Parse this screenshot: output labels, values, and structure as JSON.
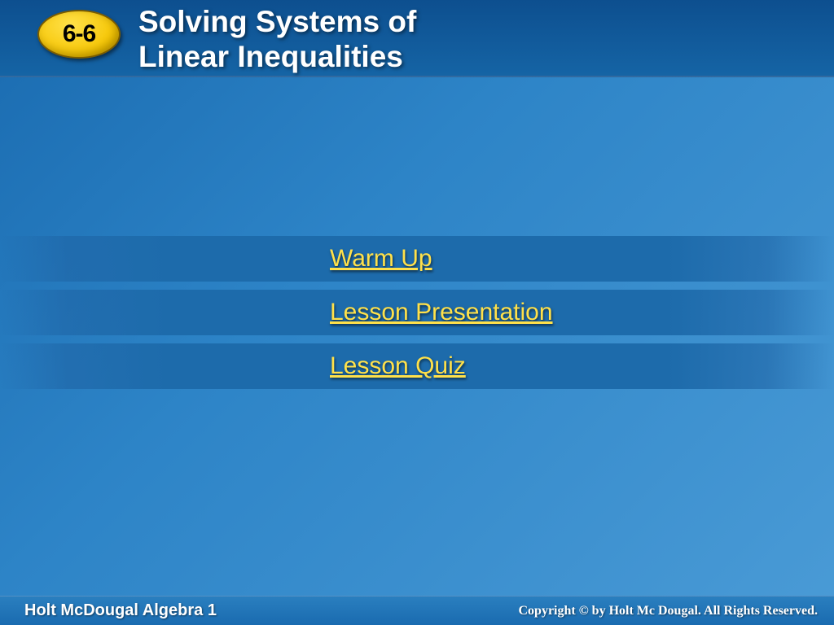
{
  "header": {
    "section_number": "6-6",
    "title_line1": "Solving Systems of",
    "title_line2": "Linear Inequalities"
  },
  "menu": {
    "items": [
      {
        "label": "Warm Up"
      },
      {
        "label": "Lesson Presentation"
      },
      {
        "label": "Lesson Quiz"
      }
    ]
  },
  "footer": {
    "left": "Holt McDougal Algebra 1",
    "right": "Copyright © by Holt Mc Dougal. All Rights Reserved."
  },
  "colors": {
    "badge_fill": "#f5c400",
    "link_color": "#ffe14a",
    "header_bg": "#1564a5",
    "body_bg_start": "#1a6bb0",
    "body_bg_end": "#4a9bd6",
    "menu_band": "#1d6bab"
  },
  "typography": {
    "title_fontsize": 37,
    "badge_fontsize": 30,
    "menu_fontsize": 30,
    "footer_left_fontsize": 20,
    "footer_right_fontsize": 16,
    "font_family": "Verdana"
  }
}
